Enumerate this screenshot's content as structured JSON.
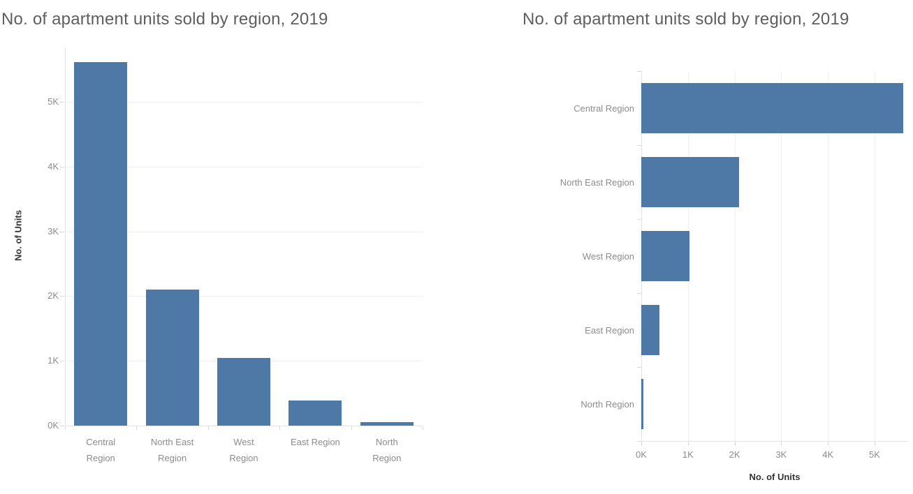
{
  "colors": {
    "bar": "#4e79a7",
    "title_text": "#5e5e5e",
    "axis_tick_text": "#8c8c8c",
    "axis_title_text": "#333333",
    "gridline": "#f0f0f0",
    "axis_line": "#e2e2e2",
    "tick_mark": "#d9d9d9",
    "background": "#ffffff"
  },
  "chart_data": [
    {
      "type": "bar",
      "orientation": "vertical",
      "title": "No. of apartment units sold by region, 2019",
      "ylabel": "No. of Units",
      "categories": [
        "Central Region",
        "North East Region",
        "West Region",
        "East Region",
        "North Region"
      ],
      "category_label_lines": [
        [
          "Central",
          "Region"
        ],
        [
          "North East",
          "Region"
        ],
        [
          "West",
          "Region"
        ],
        [
          "East Region"
        ],
        [
          "North",
          "Region"
        ]
      ],
      "values": [
        5610,
        2100,
        1040,
        390,
        50
      ],
      "ticks": {
        "labels": [
          "0K",
          "1K",
          "2K",
          "3K",
          "4K",
          "5K"
        ],
        "values": [
          0,
          1000,
          2000,
          3000,
          4000,
          5000
        ]
      },
      "ylim": [
        0,
        5800
      ],
      "grid": true,
      "legend": "none"
    },
    {
      "type": "bar",
      "orientation": "horizontal",
      "title": "No. of apartment units sold by region, 2019",
      "xlabel": "No. of Units",
      "categories": [
        "Central Region",
        "North East Region",
        "West Region",
        "East Region",
        "North Region"
      ],
      "values": [
        5610,
        2100,
        1040,
        390,
        50
      ],
      "ticks": {
        "labels": [
          "0K",
          "1K",
          "2K",
          "3K",
          "4K",
          "5K"
        ],
        "values": [
          0,
          1000,
          2000,
          3000,
          4000,
          5000
        ]
      },
      "xlim": [
        0,
        5720
      ],
      "grid": true,
      "legend": "none"
    }
  ]
}
